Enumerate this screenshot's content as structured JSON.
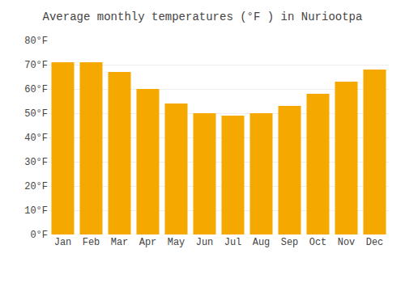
{
  "chart_data": {
    "type": "bar",
    "title": "Average monthly temperatures (°F ) in Nuriootpa",
    "categories": [
      "Jan",
      "Feb",
      "Mar",
      "Apr",
      "May",
      "Jun",
      "Jul",
      "Aug",
      "Sep",
      "Oct",
      "Nov",
      "Dec"
    ],
    "values": [
      71,
      71,
      67,
      60,
      54,
      50,
      49,
      50,
      53,
      58,
      63,
      68
    ],
    "color": "#F5A800",
    "ylim": [
      0,
      80
    ],
    "yticks": [
      {
        "value": 0,
        "label": "0°F"
      },
      {
        "value": 10,
        "label": "10°F"
      },
      {
        "value": 20,
        "label": "20°F"
      },
      {
        "value": 30,
        "label": "30°F"
      },
      {
        "value": 40,
        "label": "40°F"
      },
      {
        "value": 50,
        "label": "50°F"
      },
      {
        "value": 60,
        "label": "60°F"
      },
      {
        "value": 70,
        "label": "70°F"
      },
      {
        "value": 80,
        "label": "80°F"
      }
    ],
    "grid": true
  }
}
